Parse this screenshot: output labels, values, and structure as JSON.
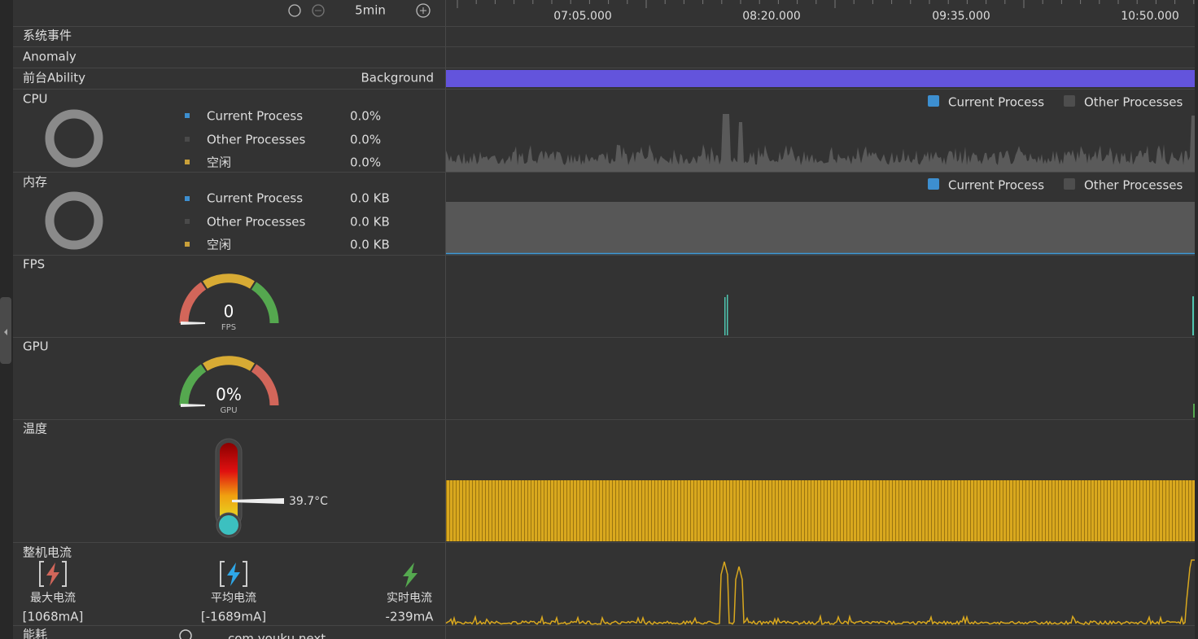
{
  "toolbar": {
    "zoom": "5min"
  },
  "timeline": {
    "ticks": [
      "07:05.000",
      "08:20.000",
      "09:35.000",
      "10:50.000"
    ]
  },
  "system_events": {
    "label": "系统事件"
  },
  "anomaly": {
    "label": "Anomaly"
  },
  "foreground": {
    "label": "前台Ability",
    "state": "Background"
  },
  "cpu": {
    "label": "CPU",
    "items": [
      {
        "name": "Current Process",
        "value": "0.0%"
      },
      {
        "name": "Other Processes",
        "value": "0.0%"
      },
      {
        "name": "空闲",
        "value": "0.0%"
      }
    ],
    "chart_legend": [
      "Current Process",
      "Other Processes"
    ]
  },
  "memory": {
    "label": "内存",
    "items": [
      {
        "name": "Current Process",
        "value": "0.0 KB"
      },
      {
        "name": "Other Processes",
        "value": "0.0 KB"
      },
      {
        "name": "空闲",
        "value": "0.0 KB"
      }
    ],
    "chart_legend": [
      "Current Process",
      "Other Processes"
    ]
  },
  "fps": {
    "label": "FPS",
    "value": "0",
    "unit": "FPS"
  },
  "gpu": {
    "label": "GPU",
    "value": "0%",
    "unit": "GPU"
  },
  "temperature": {
    "label": "温度",
    "value": "39.7°C"
  },
  "current": {
    "label": "整机电流",
    "items": [
      {
        "label": "最大电流",
        "value": "[1068mA]"
      },
      {
        "label": "平均电流",
        "value": "[-1689mA]"
      },
      {
        "label": "实时电流",
        "value": "-239mA"
      }
    ]
  },
  "energy": {
    "label": "能耗",
    "process": "com.youku.next"
  }
}
